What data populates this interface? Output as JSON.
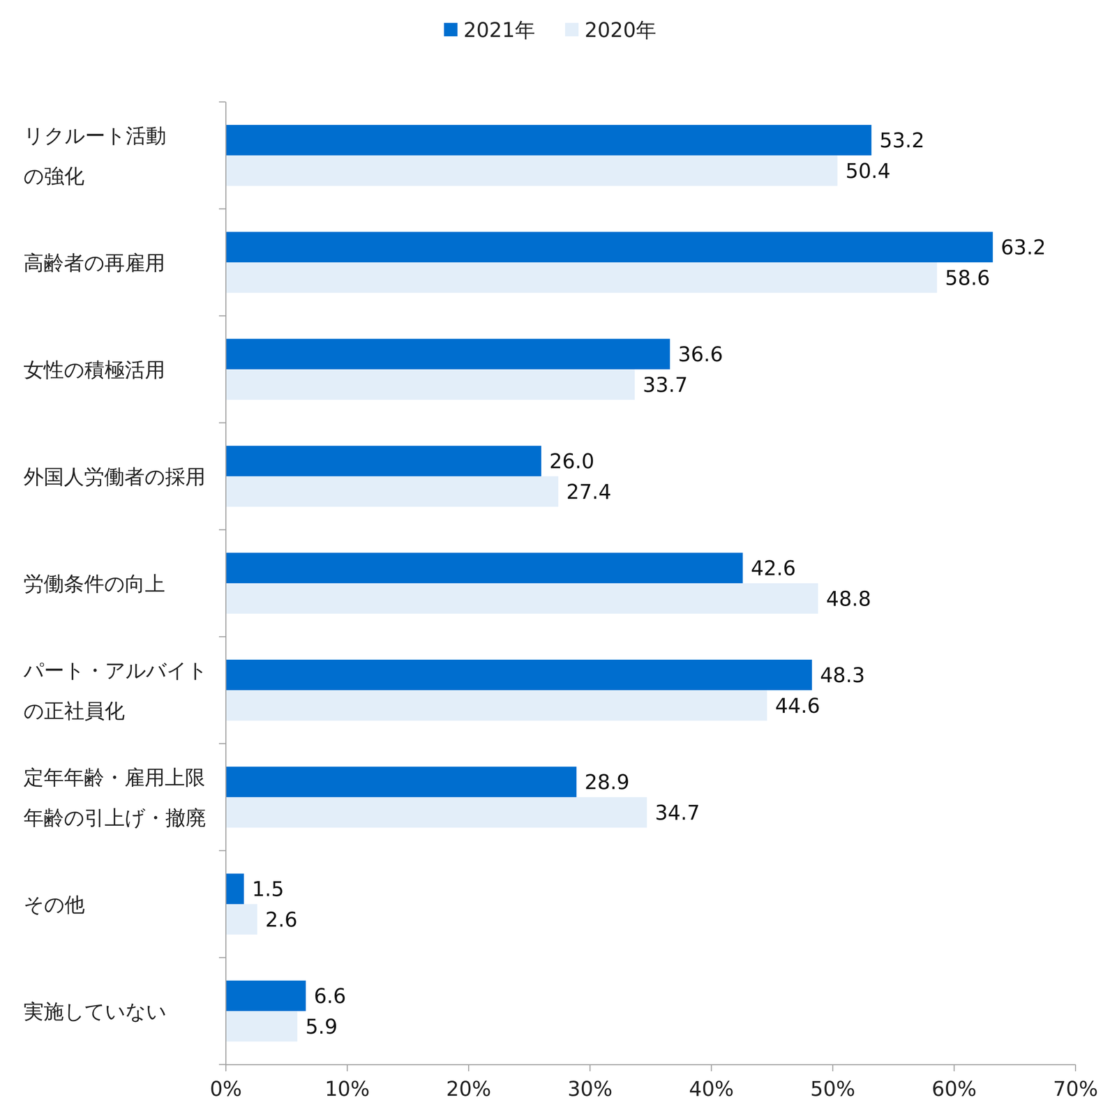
{
  "chart_data": {
    "type": "bar",
    "orientation": "horizontal",
    "data_labels": true,
    "grid": false,
    "legend": "top",
    "categories": [
      "リクルート活動\nの強化",
      "高齢者の再雇用",
      "女性の積極活用",
      "外国人労働者の採用",
      "労働条件の向上",
      "パート・アルバイト\nの正社員化",
      "定年年齢・雇用上限\n年齢の引上げ・撤廃",
      "その他",
      "実施していない"
    ],
    "series": [
      {
        "name": "2021年",
        "color": "#006ecf",
        "values": [
          53.2,
          63.2,
          36.6,
          26.0,
          42.6,
          48.3,
          28.9,
          1.5,
          6.6
        ],
        "value_labels": [
          "53.2",
          "63.2",
          "36.6",
          "26.0",
          "42.6",
          "48.3",
          "28.9",
          "1.5",
          "6.6"
        ]
      },
      {
        "name": "2020年",
        "color": "#e3eef9",
        "values": [
          50.4,
          58.6,
          33.7,
          27.4,
          48.8,
          44.6,
          34.7,
          2.6,
          5.9
        ],
        "value_labels": [
          "50.4",
          "58.6",
          "33.7",
          "27.4",
          "48.8",
          "44.6",
          "34.7",
          "2.6",
          "5.9"
        ]
      }
    ],
    "xlim": [
      0,
      70
    ],
    "xticks": [
      {
        "value": 0,
        "label": "0%"
      },
      {
        "value": 10,
        "label": "10%"
      },
      {
        "value": 20,
        "label": "20%"
      },
      {
        "value": 30,
        "label": "30%"
      },
      {
        "value": 40,
        "label": "40%"
      },
      {
        "value": 50,
        "label": "50%"
      },
      {
        "value": 60,
        "label": "60%"
      },
      {
        "value": 70,
        "label": "70%"
      }
    ]
  }
}
